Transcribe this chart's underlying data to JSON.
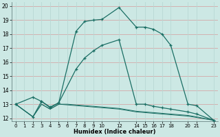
{
  "xlabel": "Humidex (Indice chaleur)",
  "bg_color": "#cce8e4",
  "hgrid_color": "#d4a8a8",
  "vgrid_color": "#b8d8d4",
  "line_color": "#1a6e64",
  "xlim": [
    -0.5,
    23.5
  ],
  "ylim": [
    11.8,
    20.3
  ],
  "xticks": [
    0,
    1,
    2,
    3,
    4,
    5,
    6,
    7,
    8,
    9,
    10,
    12,
    14,
    15,
    16,
    17,
    18,
    20,
    21,
    23
  ],
  "yticks": [
    12,
    13,
    14,
    15,
    16,
    17,
    18,
    19,
    20
  ],
  "line1_x": [
    0,
    2,
    3,
    4,
    5,
    7,
    8,
    9,
    10,
    12,
    14,
    15,
    16,
    17,
    18,
    20,
    21,
    23
  ],
  "line1_y": [
    13.0,
    13.5,
    13.2,
    12.8,
    13.1,
    18.2,
    18.9,
    19.0,
    19.05,
    19.9,
    18.5,
    18.5,
    18.35,
    18.0,
    17.2,
    13.0,
    12.9,
    11.85
  ],
  "line2_x": [
    0,
    2,
    3,
    4,
    5,
    7,
    8,
    9,
    10,
    12,
    14,
    15,
    16,
    17,
    18,
    20,
    21,
    23
  ],
  "line2_y": [
    13.0,
    12.1,
    13.2,
    12.75,
    13.1,
    15.5,
    16.3,
    16.8,
    17.2,
    17.6,
    13.0,
    13.0,
    12.85,
    12.75,
    12.65,
    12.45,
    12.3,
    11.85
  ],
  "line3_x": [
    0,
    2,
    3,
    4,
    5,
    6,
    7,
    8,
    9,
    10,
    12,
    14,
    15,
    16,
    17,
    18,
    20,
    21,
    23
  ],
  "line3_y": [
    13.0,
    12.1,
    13.0,
    12.65,
    13.0,
    13.0,
    12.95,
    12.9,
    12.85,
    12.8,
    12.7,
    12.5,
    12.45,
    12.4,
    12.35,
    12.3,
    12.2,
    12.1,
    11.85
  ],
  "line4_x": [
    0,
    2,
    3,
    4,
    5,
    6,
    7,
    8,
    9,
    10,
    12,
    14,
    15,
    16,
    17,
    18,
    20,
    21,
    23
  ],
  "line4_y": [
    13.0,
    12.1,
    13.0,
    12.65,
    13.0,
    12.95,
    12.9,
    12.85,
    12.8,
    12.75,
    12.65,
    12.45,
    12.4,
    12.35,
    12.3,
    12.25,
    12.15,
    12.05,
    11.85
  ]
}
